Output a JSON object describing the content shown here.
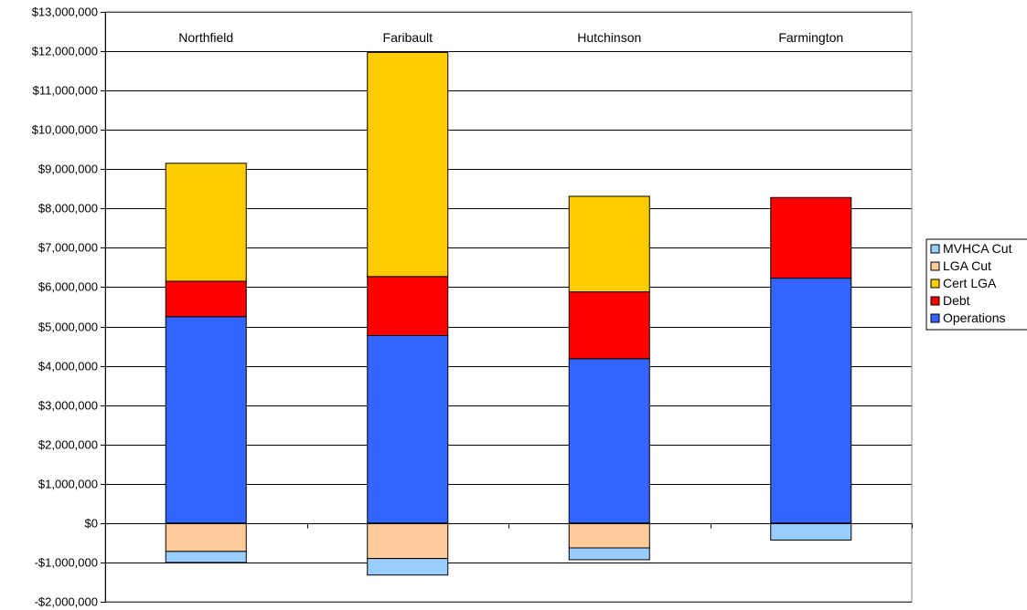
{
  "chart_data": {
    "type": "bar",
    "stacked": true,
    "categories": [
      "Northfield",
      "Faribault",
      "Hutchinson",
      "Farmington"
    ],
    "category_label_position": "top",
    "ylim": [
      -2000000,
      13000000
    ],
    "y_ticks": [
      -2000000,
      -1000000,
      0,
      1000000,
      2000000,
      3000000,
      4000000,
      5000000,
      6000000,
      7000000,
      8000000,
      9000000,
      10000000,
      11000000,
      12000000,
      13000000
    ],
    "y_tick_labels": [
      "-$2,000,000",
      "-$1,000,000",
      "$0",
      "$1,000,000",
      "$2,000,000",
      "$3,000,000",
      "$4,000,000",
      "$5,000,000",
      "$6,000,000",
      "$7,000,000",
      "$8,000,000",
      "$9,000,000",
      "$10,000,000",
      "$11,000,000",
      "$12,000,000",
      "$13,000,000"
    ],
    "grid": true,
    "legend_position": "right",
    "series": [
      {
        "name": "Operations",
        "color": "#3366ff",
        "values": [
          5250000,
          4770000,
          4180000,
          6230000
        ]
      },
      {
        "name": "Debt",
        "color": "#ff0000",
        "values": [
          900000,
          1500000,
          1700000,
          2050000
        ]
      },
      {
        "name": "Cert LGA",
        "color": "#ffcc00",
        "values": [
          3000000,
          5700000,
          2430000,
          0
        ]
      },
      {
        "name": "LGA Cut",
        "color": "#ffcc99",
        "values": [
          -720000,
          -900000,
          -630000,
          0
        ]
      },
      {
        "name": "MVHCA Cut",
        "color": "#99ccff",
        "values": [
          -280000,
          -420000,
          -300000,
          -430000
        ]
      }
    ],
    "legend_order": [
      "MVHCA Cut",
      "LGA Cut",
      "Cert LGA",
      "Debt",
      "Operations"
    ]
  }
}
